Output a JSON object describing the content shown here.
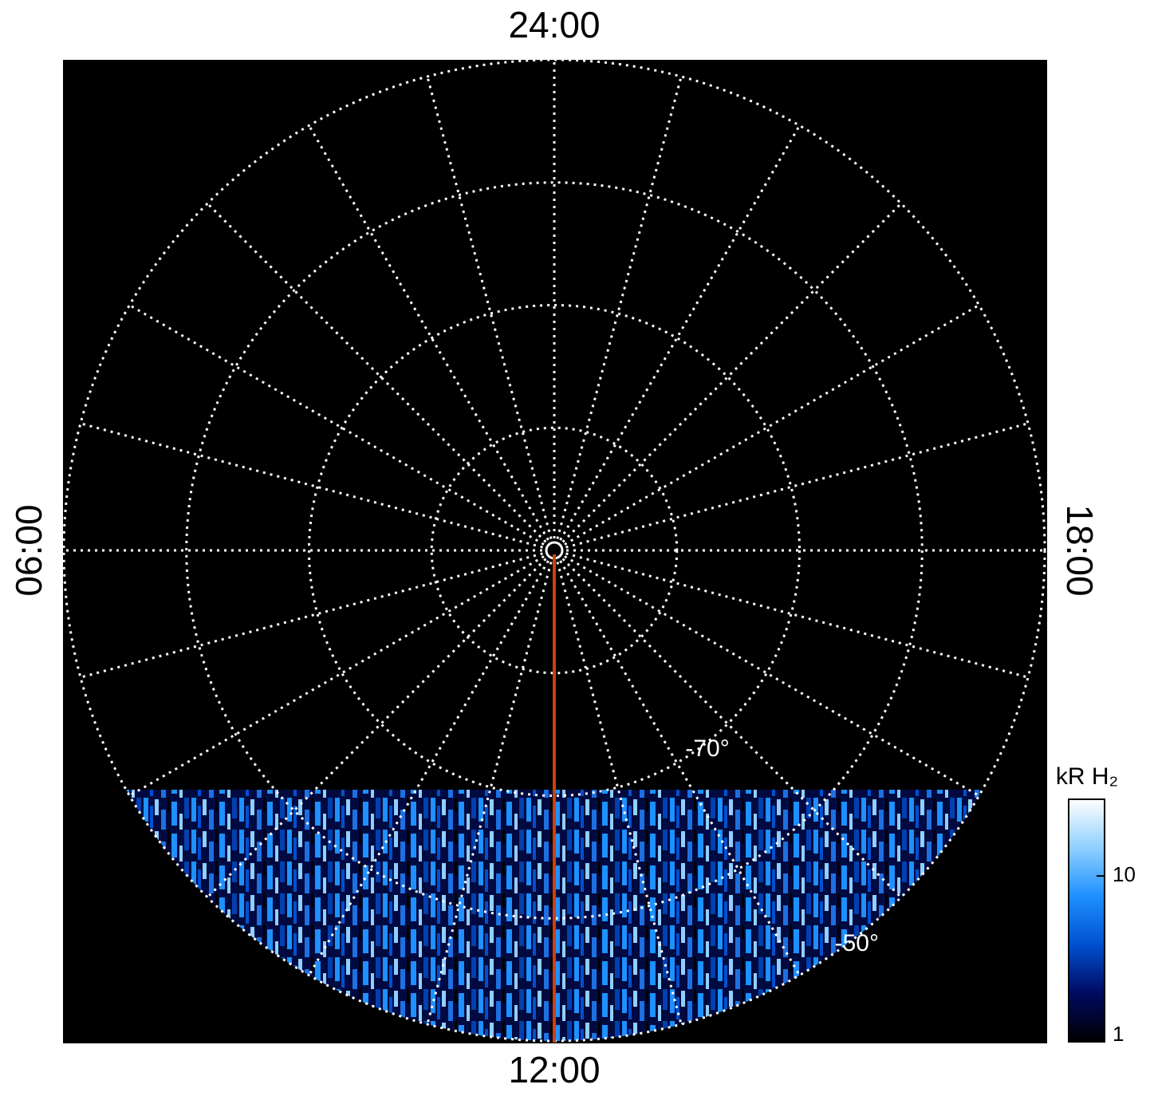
{
  "chart_data": {
    "type": "polar",
    "theta_lim": [
      0,
      24
    ],
    "theta_ticks": [
      {
        "value": 0,
        "label": "24:00"
      },
      {
        "value": 6,
        "label": "06:00"
      },
      {
        "value": 12,
        "label": "12:00"
      },
      {
        "value": 18,
        "label": "18:00"
      }
    ],
    "rlim": [
      -90,
      -50
    ],
    "rgrid": [
      -80,
      -70,
      -60,
      -50
    ],
    "rticks": [
      {
        "value": -70,
        "label": "-70°"
      },
      {
        "value": -50,
        "label": "-50°"
      }
    ],
    "marker_meridian": 12,
    "marker_color": "#d0400a",
    "colorbar": {
      "label": "kR H₂",
      "log": true,
      "clim": [
        1,
        29
      ],
      "ticks": [
        1,
        10
      ],
      "colors": [
        "#000000",
        "#000a60",
        "#0050d0",
        "#1e90ff",
        "#8fd0ff",
        "#ffffff"
      ]
    }
  }
}
